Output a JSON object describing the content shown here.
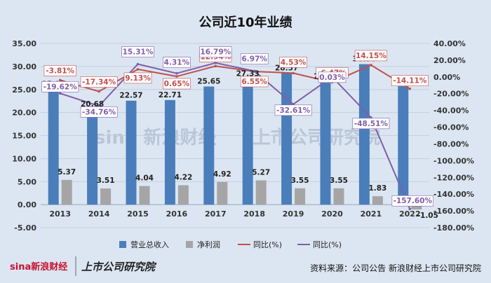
{
  "chart_data": {
    "type": "bar",
    "title": "公司近10年业绩",
    "categories": [
      "2013",
      "2014",
      "2015",
      "2016",
      "2017",
      "2018",
      "2019",
      "2020",
      "2021",
      "2022"
    ],
    "series": [
      {
        "name": "营业总收入",
        "kind": "bar",
        "axis": "left",
        "color": "#4a7ebb",
        "values": [
          25.02,
          20.68,
          22.57,
          22.71,
          25.65,
          27.33,
          28.57,
          26.72,
          30.5,
          26.2
        ],
        "labels": [
          "25.02",
          "20.68",
          "22.57",
          "22.71",
          "25.65",
          "27.33",
          "28.57",
          "26.72",
          "30.50",
          "26.20"
        ]
      },
      {
        "name": "净利润",
        "kind": "bar",
        "axis": "left",
        "color": "#a5a5a5",
        "values": [
          5.37,
          3.51,
          4.04,
          4.22,
          4.92,
          5.27,
          3.55,
          3.55,
          1.83,
          -1.05
        ],
        "labels": [
          "5.37",
          "3.51",
          "4.04",
          "4.22",
          "4.92",
          "5.27",
          "3.55",
          "3.55",
          "1.83",
          "-1.05"
        ]
      },
      {
        "name": "同比(%)",
        "kind": "line",
        "axis": "right",
        "color": "#c0504d",
        "values": [
          -3.81,
          -17.34,
          9.13,
          0.65,
          12.94,
          6.55,
          4.53,
          -6.47,
          14.15,
          -14.11
        ],
        "labels": [
          "-3.81%",
          "-17.34%",
          "9.13%",
          "0.65%",
          "12.94%",
          "6.55%",
          "4.53%",
          "-6.47%",
          "14.15%",
          "-14.11%"
        ]
      },
      {
        "name": "同比(%)",
        "kind": "line",
        "axis": "right",
        "color": "#7f5fa8",
        "values": [
          -19.62,
          -34.76,
          15.31,
          4.31,
          16.79,
          6.97,
          -32.61,
          0.03,
          -48.51,
          -157.6
        ],
        "labels": [
          "-19.62%",
          "-34.76%",
          "15.31%",
          "4.31%",
          "16.79%",
          "6.97%",
          "-32.61%",
          "0.03%",
          "-48.51%",
          "-157.60%"
        ]
      }
    ],
    "left_axis": {
      "min": -5,
      "max": 35,
      "step": 5,
      "tick_labels": [
        "-5.00",
        "0.00",
        "5.00",
        "10.00",
        "15.00",
        "20.00",
        "25.00",
        "30.00",
        "35.00"
      ]
    },
    "right_axis": {
      "min": -180,
      "max": 40,
      "step": 20,
      "tick_labels": [
        "-180.00%",
        "-160.00%",
        "-140.00%",
        "-120.00%",
        "-100.00%",
        "-80.00%",
        "-60.00%",
        "-40.00%",
        "-20.00%",
        "0.00%",
        "20.00%",
        "40.00%"
      ]
    },
    "legend": [
      "营业总收入",
      "净利润",
      "同比(%)",
      "同比(%)"
    ]
  },
  "footer": {
    "source": "资料来源：公司公告 新浪财经上市公司研究院",
    "brand_sina": "sina新浪财经",
    "brand_institute": "上市公司研究院",
    "watermark_sina": "sina 新浪财经",
    "watermark_institute": "上市公司研究院"
  },
  "colors": {
    "background": "#dce6f2"
  }
}
